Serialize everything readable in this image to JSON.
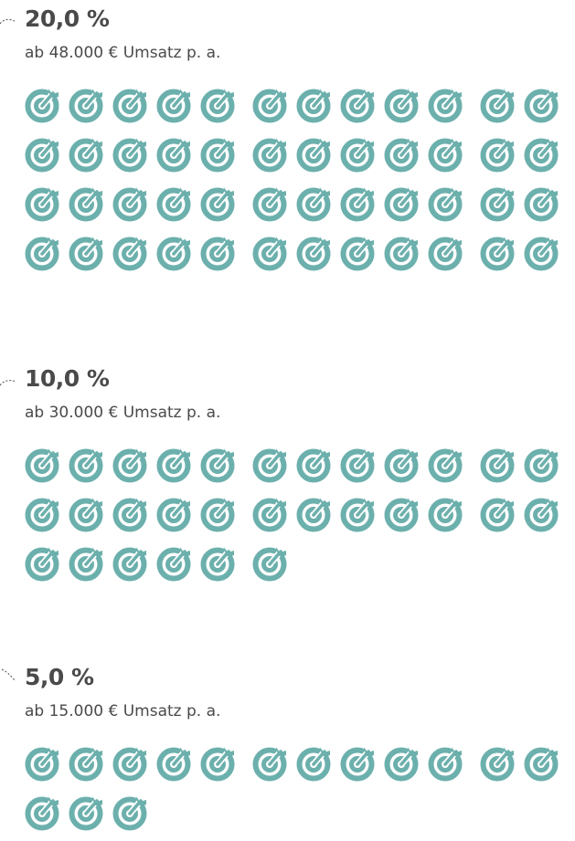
{
  "icon_color": "#6cb0ad",
  "text_color": "#4a4a4a",
  "icon_name": "target-icon",
  "tiers": [
    {
      "percent": "20,0 %",
      "threshold": "ab 48.000 € Umsatz p. a.",
      "icon_count": 48
    },
    {
      "percent": "10,0 %",
      "threshold": "ab 30.000 € Umsatz p. a.",
      "icon_count": 30
    },
    {
      "percent": "5,0 %",
      "threshold": "ab 15.000 € Umsatz p. a.",
      "icon_count": 15
    }
  ]
}
